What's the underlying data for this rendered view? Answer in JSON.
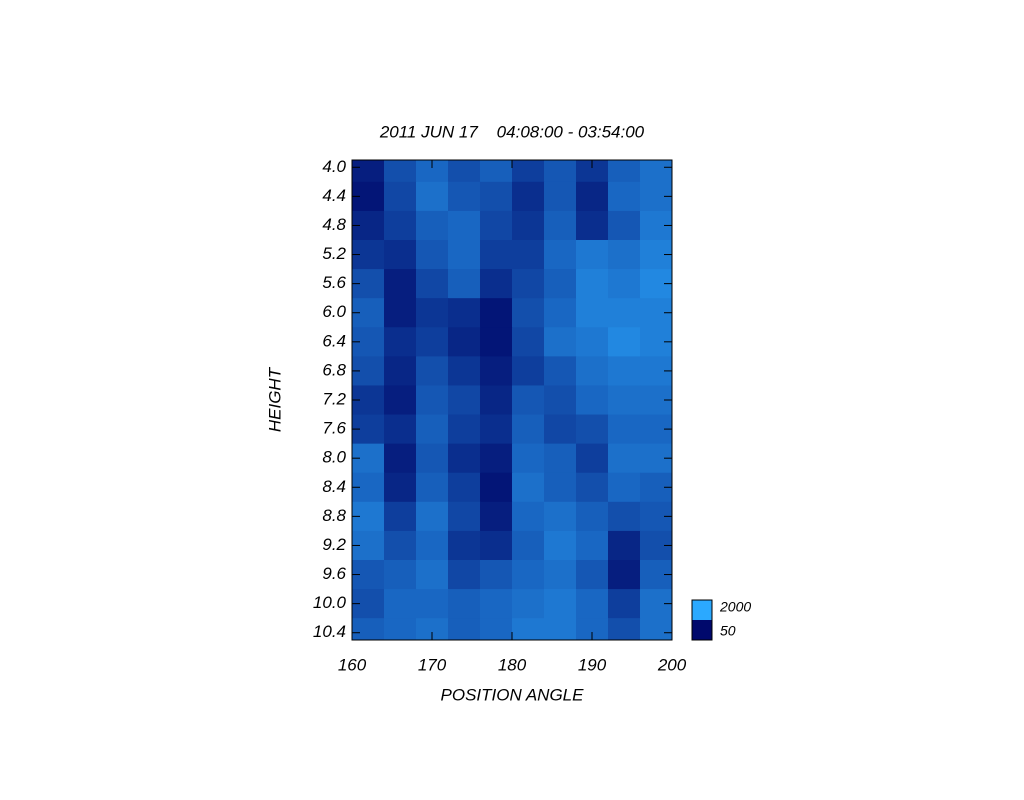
{
  "chart_data": {
    "type": "heatmap",
    "title": "2011 JUN 17    04:08:00 - 03:54:00",
    "x_label": "POSITION ANGLE",
    "y_label": "HEIGHT",
    "x": [
      162,
      166,
      170,
      174,
      178,
      182,
      186,
      190,
      194,
      198
    ],
    "y": [
      4.0,
      4.4,
      4.8,
      5.2,
      5.6,
      6.0,
      6.4,
      6.8,
      7.2,
      7.6,
      8.0,
      8.4,
      8.8,
      9.2,
      9.6,
      10.0,
      10.4
    ],
    "z": [
      [
        300,
        900,
        1200,
        900,
        1100,
        700,
        1000,
        600,
        1100,
        1300
      ],
      [
        200,
        800,
        1300,
        1000,
        900,
        500,
        1000,
        400,
        1200,
        1300
      ],
      [
        400,
        700,
        1100,
        1200,
        800,
        600,
        1100,
        500,
        1000,
        1400
      ],
      [
        600,
        500,
        1000,
        1200,
        700,
        700,
        1200,
        1400,
        1300,
        1500
      ],
      [
        900,
        300,
        800,
        1100,
        500,
        800,
        1100,
        1500,
        1400,
        1600
      ],
      [
        1100,
        300,
        600,
        500,
        200,
        900,
        1200,
        1500,
        1500,
        1500
      ],
      [
        1000,
        500,
        700,
        400,
        200,
        800,
        1300,
        1400,
        1600,
        1500
      ],
      [
        900,
        400,
        900,
        600,
        300,
        700,
        1000,
        1300,
        1400,
        1400
      ],
      [
        600,
        300,
        1000,
        800,
        400,
        1000,
        900,
        1200,
        1300,
        1300
      ],
      [
        700,
        500,
        1100,
        700,
        500,
        1100,
        800,
        900,
        1200,
        1200
      ],
      [
        1300,
        300,
        1000,
        500,
        300,
        1200,
        1100,
        700,
        1300,
        1300
      ],
      [
        1200,
        400,
        1100,
        700,
        200,
        1300,
        1100,
        900,
        1200,
        1100
      ],
      [
        1400,
        700,
        1300,
        800,
        300,
        1200,
        1300,
        1100,
        900,
        1000
      ],
      [
        1300,
        900,
        1200,
        600,
        500,
        1100,
        1400,
        1200,
        400,
        900
      ],
      [
        1000,
        1100,
        1300,
        800,
        1000,
        1200,
        1300,
        1000,
        300,
        1100
      ],
      [
        900,
        1200,
        1200,
        1100,
        1200,
        1300,
        1400,
        1200,
        700,
        1300
      ],
      [
        1100,
        1200,
        1300,
        1100,
        1200,
        1400,
        1400,
        1200,
        900,
        1300
      ]
    ],
    "xlim": [
      160,
      200
    ],
    "xticks": [
      160,
      170,
      180,
      190,
      200
    ],
    "ylim": [
      3.9,
      10.5
    ],
    "y_inverted": true,
    "yticks": [
      {
        "value": 4.0,
        "label": "4.0"
      },
      4.4,
      4.8,
      5.2,
      5.6,
      {
        "value": 6.0,
        "label": "6.0"
      },
      6.4,
      6.8,
      7.2,
      7.6,
      {
        "value": 8.0,
        "label": "8.0"
      },
      8.4,
      8.8,
      9.2,
      9.6,
      {
        "value": 10.0,
        "label": "10.0"
      },
      10.4
    ],
    "clim": [
      50,
      2000
    ],
    "colorbar_ticks": [
      2000,
      50
    ],
    "colormap": [
      "#00096c",
      "#2ba9ff"
    ]
  }
}
